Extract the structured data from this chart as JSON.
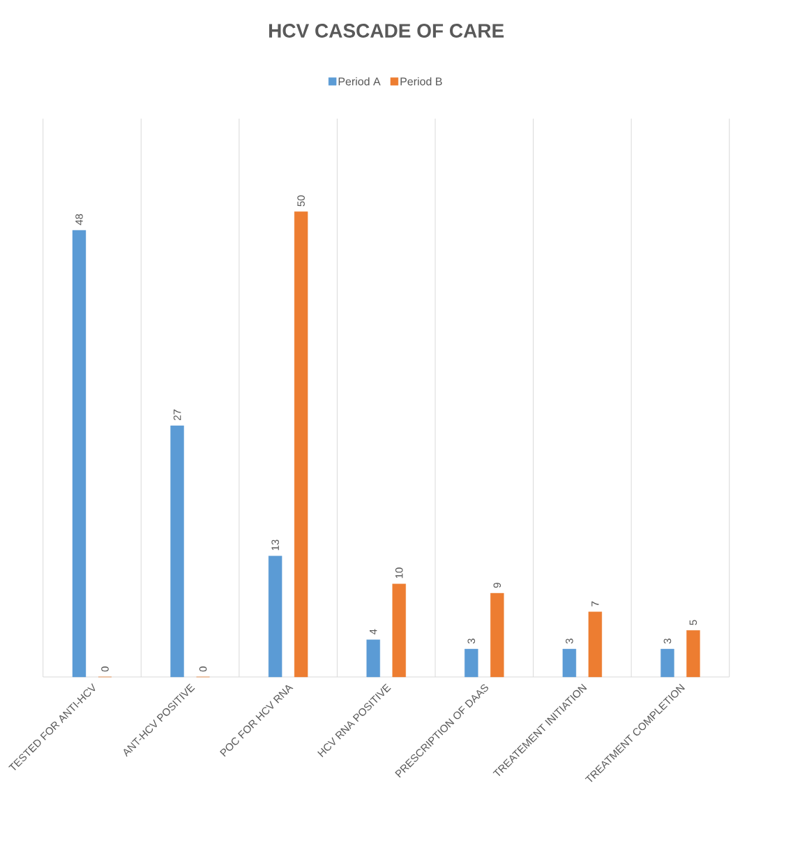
{
  "chart_data": {
    "type": "bar",
    "title": "HCV CASCADE OF CARE",
    "categories": [
      "TESTED FOR ANTI-HCV",
      "ANT-HCV POSITIVE",
      "POC FOR HCV RNA",
      "HCV RNA POSITIVE",
      "PRESCRIPTION OF DAAS",
      "TREATEMENT INITIATION",
      "TREATMENT COMPLETION"
    ],
    "series": [
      {
        "name": "Period A",
        "color": "#5b9bd5",
        "values": [
          48,
          27,
          13,
          4,
          3,
          3,
          3
        ]
      },
      {
        "name": "Period B",
        "color": "#ed7d31",
        "values": [
          0,
          0,
          50,
          10,
          9,
          7,
          5
        ]
      }
    ],
    "data_labels": true,
    "grid": "x",
    "legend": "top"
  }
}
